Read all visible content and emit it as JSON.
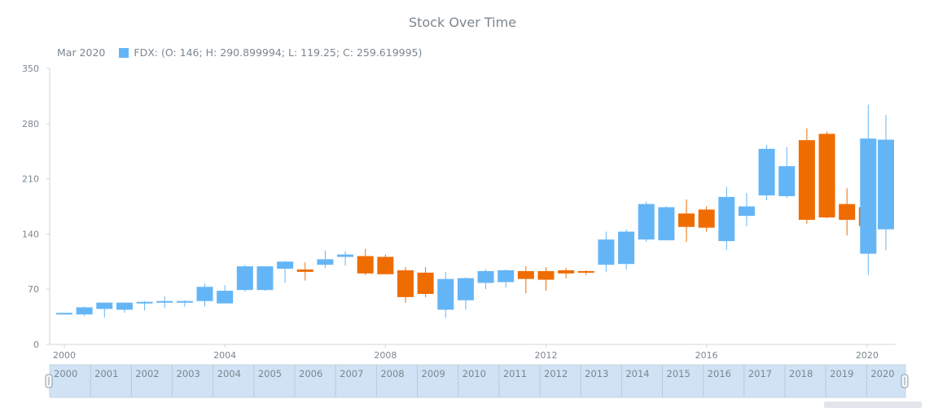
{
  "chart_data": {
    "type": "candlestick",
    "title": "Stock Over Time",
    "legend": {
      "date": "Mar 2020",
      "text": "FDX: (O: 146; H: 290.899994; L: 119.25; C: 259.619995)",
      "color": "#64b5f6"
    },
    "colors": {
      "rising": "#64b5f6",
      "falling": "#ef6c00"
    },
    "ylim": [
      0,
      350
    ],
    "y_ticks": [
      0,
      70,
      140,
      210,
      280,
      350
    ],
    "x_ticks": [
      "2000",
      "2004",
      "2008",
      "2012",
      "2016",
      "2020"
    ],
    "x_range": [
      2000.0,
      2020.47
    ],
    "series": [
      {
        "name": "FDX",
        "points": [
          {
            "t": 2000.0,
            "open": 40,
            "high": 40,
            "low": 39,
            "close": 40
          },
          {
            "t": 2000.5,
            "open": 38,
            "high": 48,
            "low": 36,
            "close": 47
          },
          {
            "t": 2001.0,
            "open": 45,
            "high": 53,
            "low": 34,
            "close": 53
          },
          {
            "t": 2001.5,
            "open": 44,
            "high": 53,
            "low": 40,
            "close": 53
          },
          {
            "t": 2002.0,
            "open": 54,
            "high": 55,
            "low": 43,
            "close": 54
          },
          {
            "t": 2002.5,
            "open": 54,
            "high": 61,
            "low": 46,
            "close": 55
          },
          {
            "t": 2003.0,
            "open": 54,
            "high": 56,
            "low": 48,
            "close": 55
          },
          {
            "t": 2003.5,
            "open": 55,
            "high": 77,
            "low": 48,
            "close": 73
          },
          {
            "t": 2004.0,
            "open": 52,
            "high": 75,
            "low": 52,
            "close": 68
          },
          {
            "t": 2004.5,
            "open": 69,
            "high": 101,
            "low": 67,
            "close": 99
          },
          {
            "t": 2005.0,
            "open": 69,
            "high": 99,
            "low": 68,
            "close": 99
          },
          {
            "t": 2005.5,
            "open": 96,
            "high": 106,
            "low": 78,
            "close": 105
          },
          {
            "t": 2006.0,
            "open": 95,
            "high": 104,
            "low": 81,
            "close": 92
          },
          {
            "t": 2006.5,
            "open": 101,
            "high": 119,
            "low": 97,
            "close": 108
          },
          {
            "t": 2007.0,
            "open": 111,
            "high": 118,
            "low": 100,
            "close": 114
          },
          {
            "t": 2007.5,
            "open": 112,
            "high": 121,
            "low": 88,
            "close": 90
          },
          {
            "t": 2008.0,
            "open": 111,
            "high": 114,
            "low": 90,
            "close": 89
          },
          {
            "t": 2008.5,
            "open": 94,
            "high": 98,
            "low": 53,
            "close": 60
          },
          {
            "t": 2009.0,
            "open": 91,
            "high": 98,
            "low": 60,
            "close": 64
          },
          {
            "t": 2009.5,
            "open": 44,
            "high": 92,
            "low": 34,
            "close": 83
          },
          {
            "t": 2010.0,
            "open": 56,
            "high": 85,
            "low": 44,
            "close": 84
          },
          {
            "t": 2010.5,
            "open": 78,
            "high": 95,
            "low": 70,
            "close": 93
          },
          {
            "t": 2011.0,
            "open": 79,
            "high": 95,
            "low": 72,
            "close": 94
          },
          {
            "t": 2011.5,
            "open": 93,
            "high": 99,
            "low": 65,
            "close": 83
          },
          {
            "t": 2012.0,
            "open": 93,
            "high": 98,
            "low": 68,
            "close": 82
          },
          {
            "t": 2012.5,
            "open": 94,
            "high": 97,
            "low": 84,
            "close": 90
          },
          {
            "t": 2013.0,
            "open": 93,
            "high": 94,
            "low": 88,
            "close": 92
          },
          {
            "t": 2013.5,
            "open": 101,
            "high": 143,
            "low": 92,
            "close": 133
          },
          {
            "t": 2014.0,
            "open": 102,
            "high": 146,
            "low": 95,
            "close": 143
          },
          {
            "t": 2014.5,
            "open": 133,
            "high": 181,
            "low": 130,
            "close": 178
          },
          {
            "t": 2015.0,
            "open": 132,
            "high": 175,
            "low": 132,
            "close": 174
          },
          {
            "t": 2015.5,
            "open": 166,
            "high": 184,
            "low": 130,
            "close": 149
          },
          {
            "t": 2016.0,
            "open": 171,
            "high": 175,
            "low": 143,
            "close": 148
          },
          {
            "t": 2016.5,
            "open": 131,
            "high": 200,
            "low": 120,
            "close": 187
          },
          {
            "t": 2017.0,
            "open": 163,
            "high": 192,
            "low": 150,
            "close": 175
          },
          {
            "t": 2017.5,
            "open": 189,
            "high": 253,
            "low": 183,
            "close": 248
          },
          {
            "t": 2018.0,
            "open": 188,
            "high": 250,
            "low": 186,
            "close": 226
          },
          {
            "t": 2018.5,
            "open": 259,
            "high": 274,
            "low": 153,
            "close": 158
          },
          {
            "t": 2019.0,
            "open": 267,
            "high": 270,
            "low": 160,
            "close": 161
          },
          {
            "t": 2019.5,
            "open": 178,
            "high": 198,
            "low": 138,
            "close": 158
          },
          {
            "t": 2020.0,
            "open": 174,
            "high": 190,
            "low": 145,
            "close": 150
          },
          {
            "t": 2020.03,
            "open": 115,
            "high": 304,
            "low": 88,
            "close": 261
          },
          {
            "t": 2020.47,
            "open": 146,
            "high": 290.899994,
            "low": 119.25,
            "close": 259.619995
          }
        ]
      }
    ]
  },
  "scroller": {
    "years": [
      "2000",
      "2001",
      "2002",
      "2003",
      "2004",
      "2005",
      "2006",
      "2007",
      "2008",
      "2009",
      "2010",
      "2011",
      "2012",
      "2013",
      "2014",
      "2015",
      "2016",
      "2017",
      "2018",
      "2019",
      "2020"
    ]
  }
}
